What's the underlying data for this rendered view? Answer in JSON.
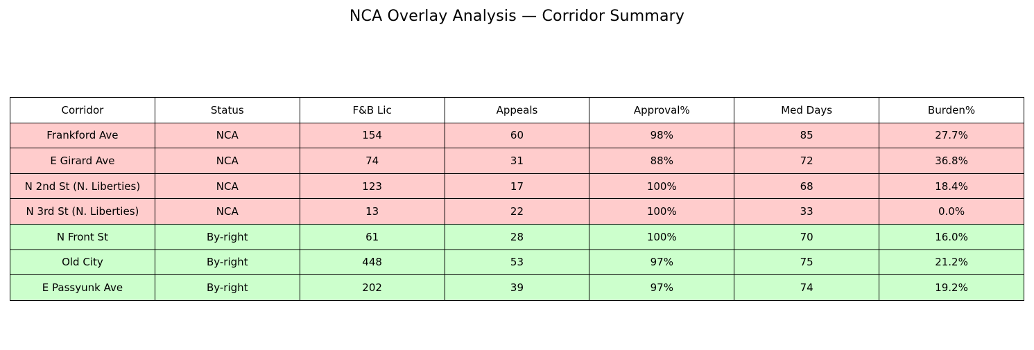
{
  "title": "NCA Overlay Analysis — Corridor Summary",
  "colors": {
    "nca_row_bg": "#ffcccc",
    "byright_row_bg": "#ccffcc",
    "header_bg": "#ffffff",
    "border": "#000000"
  },
  "table": {
    "columns": [
      "Corridor",
      "Status",
      "F&B Lic",
      "Appeals",
      "Approval%",
      "Med Days",
      "Burden%"
    ],
    "rows": [
      {
        "status_class": "nca",
        "cells": [
          "Frankford Ave",
          "NCA",
          "154",
          "60",
          "98%",
          "85",
          "27.7%"
        ]
      },
      {
        "status_class": "nca",
        "cells": [
          "E Girard Ave",
          "NCA",
          "74",
          "31",
          "88%",
          "72",
          "36.8%"
        ]
      },
      {
        "status_class": "nca",
        "cells": [
          "N 2nd St (N. Liberties)",
          "NCA",
          "123",
          "17",
          "100%",
          "68",
          "18.4%"
        ]
      },
      {
        "status_class": "nca",
        "cells": [
          "N 3rd St (N. Liberties)",
          "NCA",
          "13",
          "22",
          "100%",
          "33",
          "0.0%"
        ]
      },
      {
        "status_class": "byright",
        "cells": [
          "N Front St",
          "By-right",
          "61",
          "28",
          "100%",
          "70",
          "16.0%"
        ]
      },
      {
        "status_class": "byright",
        "cells": [
          "Old City",
          "By-right",
          "448",
          "53",
          "97%",
          "75",
          "21.2%"
        ]
      },
      {
        "status_class": "byright",
        "cells": [
          "E Passyunk Ave",
          "By-right",
          "202",
          "39",
          "97%",
          "74",
          "19.2%"
        ]
      }
    ]
  },
  "chart_data": {
    "type": "table",
    "title": "NCA Overlay Analysis — Corridor Summary",
    "columns": [
      "Corridor",
      "Status",
      "F&B Lic",
      "Appeals",
      "Approval%",
      "Med Days",
      "Burden%"
    ],
    "rows": [
      [
        "Frankford Ave",
        "NCA",
        154,
        60,
        "98%",
        85,
        "27.7%"
      ],
      [
        "E Girard Ave",
        "NCA",
        74,
        31,
        "88%",
        72,
        "36.8%"
      ],
      [
        "N 2nd St (N. Liberties)",
        "NCA",
        123,
        17,
        "100%",
        68,
        "18.4%"
      ],
      [
        "N 3rd St (N. Liberties)",
        "NCA",
        13,
        22,
        "100%",
        33,
        "0.0%"
      ],
      [
        "N Front St",
        "By-right",
        61,
        28,
        "100%",
        70,
        "16.0%"
      ],
      [
        "Old City",
        "By-right",
        448,
        53,
        "97%",
        75,
        "21.2%"
      ],
      [
        "E Passyunk Ave",
        "By-right",
        202,
        39,
        "97%",
        74,
        "19.2%"
      ]
    ],
    "row_group_colors": {
      "NCA": "#ffcccc",
      "By-right": "#ccffcc"
    },
    "layout": {
      "header_background": "#ffffff",
      "border_color": "#000000",
      "cell_text_align": "center"
    }
  }
}
